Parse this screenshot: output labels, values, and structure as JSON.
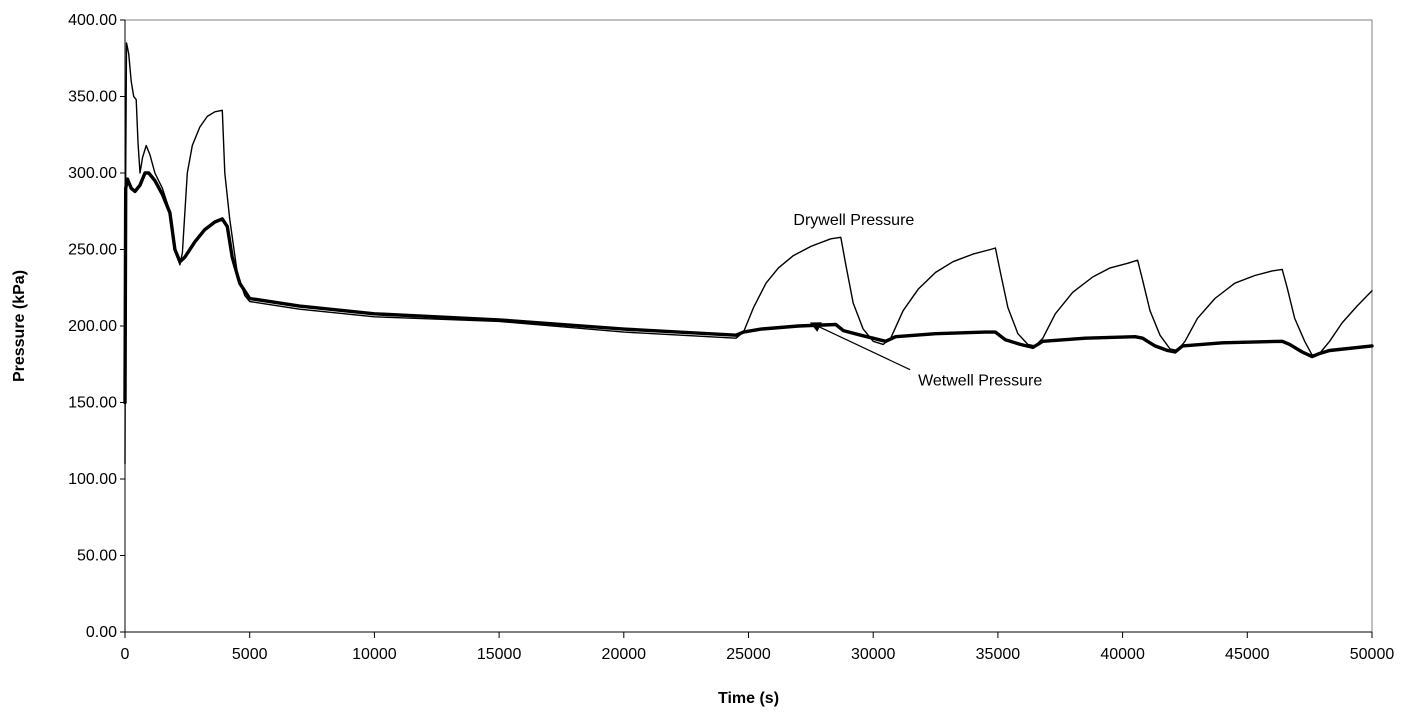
{
  "chart_data": {
    "type": "line",
    "title": "",
    "xlabel": "Time (s)",
    "ylabel": "Pressure (kPa)",
    "xlim": [
      0,
      50000
    ],
    "ylim": [
      0,
      400
    ],
    "x_ticks": [
      "0",
      "5000",
      "10000",
      "15000",
      "20000",
      "25000",
      "30000",
      "35000",
      "40000",
      "45000",
      "50000"
    ],
    "y_ticks": [
      "0.00",
      "50.00",
      "100.00",
      "150.00",
      "200.00",
      "250.00",
      "300.00",
      "350.00",
      "400.00"
    ],
    "grid": false,
    "legend": "none",
    "series": [
      {
        "name": "Drywell Pressure",
        "points": [
          [
            0,
            110
          ],
          [
            30,
            300
          ],
          [
            60,
            385
          ],
          [
            150,
            378
          ],
          [
            250,
            360
          ],
          [
            350,
            350
          ],
          [
            450,
            348
          ],
          [
            520,
            320
          ],
          [
            600,
            300
          ],
          [
            700,
            310
          ],
          [
            850,
            318
          ],
          [
            1000,
            312
          ],
          [
            1200,
            300
          ],
          [
            1500,
            290
          ],
          [
            1800,
            275
          ],
          [
            2000,
            250
          ],
          [
            2200,
            240
          ],
          [
            2300,
            248
          ],
          [
            2500,
            300
          ],
          [
            2700,
            318
          ],
          [
            3000,
            330
          ],
          [
            3300,
            337
          ],
          [
            3600,
            340
          ],
          [
            3900,
            341
          ],
          [
            4000,
            300
          ],
          [
            4200,
            270
          ],
          [
            4500,
            235
          ],
          [
            4800,
            220
          ],
          [
            5000,
            216
          ],
          [
            7000,
            211
          ],
          [
            10000,
            206
          ],
          [
            15000,
            203
          ],
          [
            20000,
            196
          ],
          [
            24500,
            192
          ],
          [
            24800,
            196
          ],
          [
            25200,
            212
          ],
          [
            25700,
            228
          ],
          [
            26200,
            238
          ],
          [
            26800,
            246
          ],
          [
            27500,
            252
          ],
          [
            28300,
            257
          ],
          [
            28700,
            258
          ],
          [
            28900,
            240
          ],
          [
            29200,
            215
          ],
          [
            29600,
            198
          ],
          [
            30000,
            190
          ],
          [
            30400,
            188
          ],
          [
            30700,
            192
          ],
          [
            31200,
            210
          ],
          [
            31800,
            224
          ],
          [
            32500,
            235
          ],
          [
            33200,
            242
          ],
          [
            34000,
            247
          ],
          [
            34700,
            250
          ],
          [
            34900,
            251
          ],
          [
            35100,
            235
          ],
          [
            35400,
            212
          ],
          [
            35800,
            195
          ],
          [
            36200,
            188
          ],
          [
            36500,
            187
          ],
          [
            36800,
            192
          ],
          [
            37300,
            208
          ],
          [
            38000,
            222
          ],
          [
            38800,
            232
          ],
          [
            39500,
            238
          ],
          [
            40200,
            241
          ],
          [
            40600,
            243
          ],
          [
            40800,
            230
          ],
          [
            41100,
            210
          ],
          [
            41500,
            194
          ],
          [
            41900,
            185
          ],
          [
            42200,
            184
          ],
          [
            42500,
            190
          ],
          [
            43000,
            205
          ],
          [
            43700,
            218
          ],
          [
            44500,
            228
          ],
          [
            45300,
            233
          ],
          [
            46000,
            236
          ],
          [
            46400,
            237
          ],
          [
            46600,
            225
          ],
          [
            46900,
            205
          ],
          [
            47300,
            190
          ],
          [
            47600,
            181
          ],
          [
            47900,
            182
          ],
          [
            48300,
            190
          ],
          [
            48800,
            202
          ],
          [
            49400,
            213
          ],
          [
            50000,
            223
          ]
        ],
        "stroke_width": 1.4,
        "color": "#000000"
      },
      {
        "name": "Wetwell Pressure",
        "points": [
          [
            0,
            150
          ],
          [
            30,
            290
          ],
          [
            100,
            296
          ],
          [
            250,
            290
          ],
          [
            400,
            288
          ],
          [
            600,
            292
          ],
          [
            800,
            300
          ],
          [
            950,
            300
          ],
          [
            1200,
            295
          ],
          [
            1500,
            286
          ],
          [
            1800,
            274
          ],
          [
            2000,
            250
          ],
          [
            2200,
            242
          ],
          [
            2400,
            245
          ],
          [
            2800,
            255
          ],
          [
            3200,
            263
          ],
          [
            3600,
            268
          ],
          [
            3900,
            270
          ],
          [
            4100,
            265
          ],
          [
            4300,
            245
          ],
          [
            4600,
            228
          ],
          [
            5000,
            218
          ],
          [
            7000,
            213
          ],
          [
            10000,
            208
          ],
          [
            15000,
            204
          ],
          [
            20000,
            198
          ],
          [
            24500,
            194
          ],
          [
            24800,
            196
          ],
          [
            25500,
            198
          ],
          [
            27000,
            200
          ],
          [
            28500,
            201
          ],
          [
            28800,
            197
          ],
          [
            29500,
            194
          ],
          [
            30500,
            190
          ],
          [
            30900,
            193
          ],
          [
            32500,
            195
          ],
          [
            34500,
            196
          ],
          [
            34900,
            196
          ],
          [
            35300,
            191
          ],
          [
            35900,
            188
          ],
          [
            36400,
            186
          ],
          [
            36800,
            190
          ],
          [
            38500,
            192
          ],
          [
            40500,
            193
          ],
          [
            40800,
            192
          ],
          [
            41300,
            187
          ],
          [
            41800,
            184
          ],
          [
            42100,
            183
          ],
          [
            42400,
            187
          ],
          [
            44000,
            189
          ],
          [
            46400,
            190
          ],
          [
            46700,
            188
          ],
          [
            47200,
            183
          ],
          [
            47600,
            180
          ],
          [
            47900,
            182
          ],
          [
            48300,
            184
          ],
          [
            50000,
            187
          ]
        ],
        "stroke_width": 3.4,
        "color": "#000000"
      }
    ],
    "annotations": [
      {
        "text": "Drywell Pressure",
        "x": 26800,
        "y": 266
      },
      {
        "text": "Wetwell Pressure",
        "x": 31800,
        "y": 161,
        "arrow_to": [
          27500,
          202
        ]
      }
    ]
  }
}
